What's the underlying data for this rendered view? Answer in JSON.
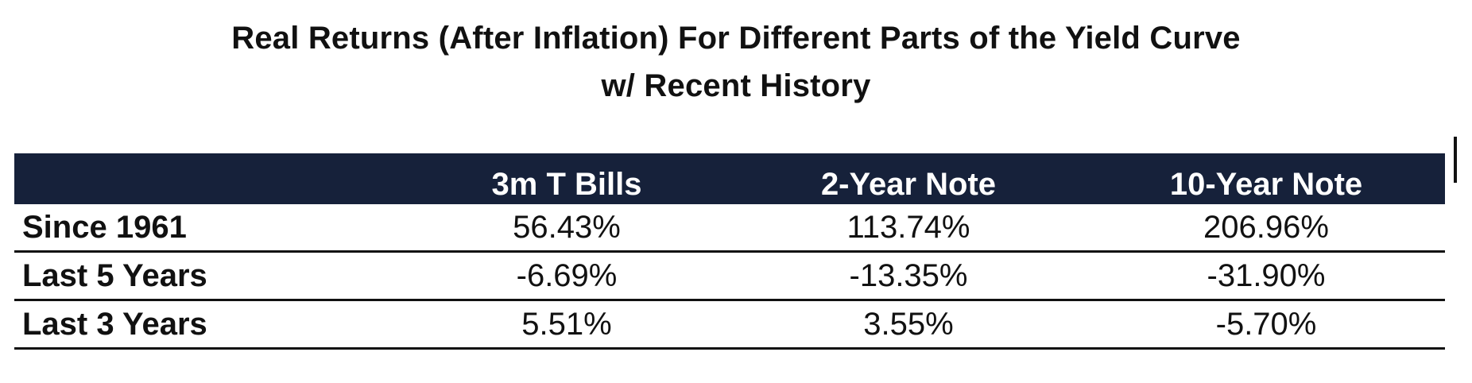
{
  "chart_data": {
    "type": "table",
    "title": "Real Returns (After Inflation) For Different Parts of the Yield Curve",
    "subtitle": "w/ Recent History",
    "columns": [
      "",
      "3m T Bills",
      "2-Year Note",
      "10-Year Note"
    ],
    "rows": [
      {
        "label": "Since 1961",
        "values": [
          "56.43%",
          "113.74%",
          "206.96%"
        ]
      },
      {
        "label": "Last 5 Years",
        "values": [
          "-6.69%",
          "-13.35%",
          "-31.90%"
        ]
      },
      {
        "label": "Last 3 Years",
        "values": [
          "5.51%",
          "3.55%",
          "-5.70%"
        ]
      }
    ],
    "header_color": "#16213a"
  }
}
